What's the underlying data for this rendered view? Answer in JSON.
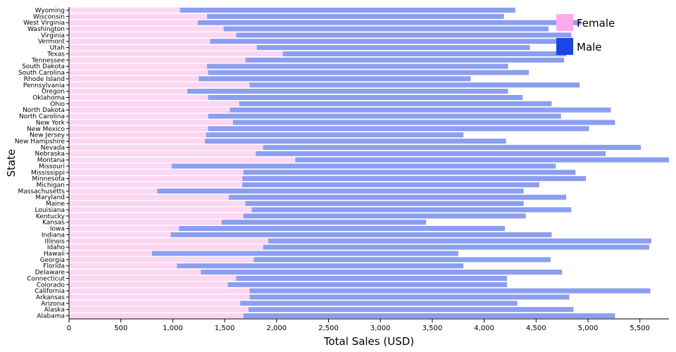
{
  "chart_data": {
    "type": "bar",
    "orientation": "horizontal",
    "stacked": "overlay",
    "xlabel": "Total Sales (USD)",
    "ylabel": "State",
    "xlim": [
      0,
      5780
    ],
    "xticks": [
      "0",
      "500",
      "1,000",
      "1,500",
      "2,000",
      "2,500",
      "3,000",
      "3,500",
      "4,000",
      "4,500",
      "5,000",
      "5,500"
    ],
    "xtick_values": [
      0,
      500,
      1000,
      1500,
      2000,
      2500,
      3000,
      3500,
      4000,
      4500,
      5000,
      5500
    ],
    "categories": [
      "Wyoming",
      "Wisconsin",
      "West Virginia",
      "Washington",
      "Virginia",
      "Vermont",
      "Utah",
      "Texas",
      "Tennessee",
      "South Dakota",
      "South Carolina",
      "Rhode Island",
      "Pennsylvania",
      "Oregon",
      "Oklahoma",
      "Ohio",
      "North Dakota",
      "North Carolina",
      "New York",
      "New Mexico",
      "New Jersey",
      "New Hampshire",
      "Nevada",
      "Nebraska",
      "Montana",
      "Missouri",
      "Mississippi",
      "Minnesota",
      "Michigan",
      "Massachusetts",
      "Maryland",
      "Maine",
      "Louisiana",
      "Kentucky",
      "Kansas",
      "Iowa",
      "Indiana",
      "Illinois",
      "Idaho",
      "Hawaii",
      "Georgia",
      "Florida",
      "Delaware",
      "Connecticut",
      "Colorado",
      "California",
      "Arkansas",
      "Arizona",
      "Alaska",
      "Alabama"
    ],
    "series": [
      {
        "name": "Female",
        "color": "#ffd6f2",
        "values": [
          1070,
          1330,
          1240,
          1490,
          1610,
          1360,
          1810,
          2060,
          1700,
          1330,
          1340,
          1250,
          1740,
          1140,
          1340,
          1640,
          1550,
          1340,
          1580,
          1340,
          1320,
          1310,
          1870,
          1800,
          2180,
          990,
          1680,
          1670,
          1670,
          850,
          1540,
          1700,
          1760,
          1680,
          1470,
          1060,
          980,
          1920,
          1870,
          800,
          1780,
          1040,
          1270,
          1610,
          1530,
          1740,
          1740,
          1650,
          1730,
          1680
        ]
      },
      {
        "name": "Male",
        "color": "#8b9ef0",
        "values": [
          4300,
          4190,
          4930,
          4620,
          4840,
          4820,
          4440,
          4790,
          4770,
          4230,
          4430,
          3870,
          4920,
          4230,
          4370,
          4650,
          5220,
          4740,
          5260,
          5010,
          3800,
          4210,
          5510,
          5170,
          5780,
          4690,
          4880,
          4980,
          4530,
          4380,
          4790,
          4380,
          4840,
          4400,
          3440,
          4200,
          4650,
          5610,
          5590,
          3750,
          4640,
          3800,
          4750,
          4220,
          4220,
          5600,
          4820,
          4320,
          4860,
          5260
        ]
      }
    ],
    "legend": {
      "placement": "top-right",
      "entries": [
        {
          "label": "Female",
          "swatch": "#ffaaf0"
        },
        {
          "label": "Male",
          "swatch": "#1a46e8"
        }
      ]
    },
    "grid": false
  }
}
